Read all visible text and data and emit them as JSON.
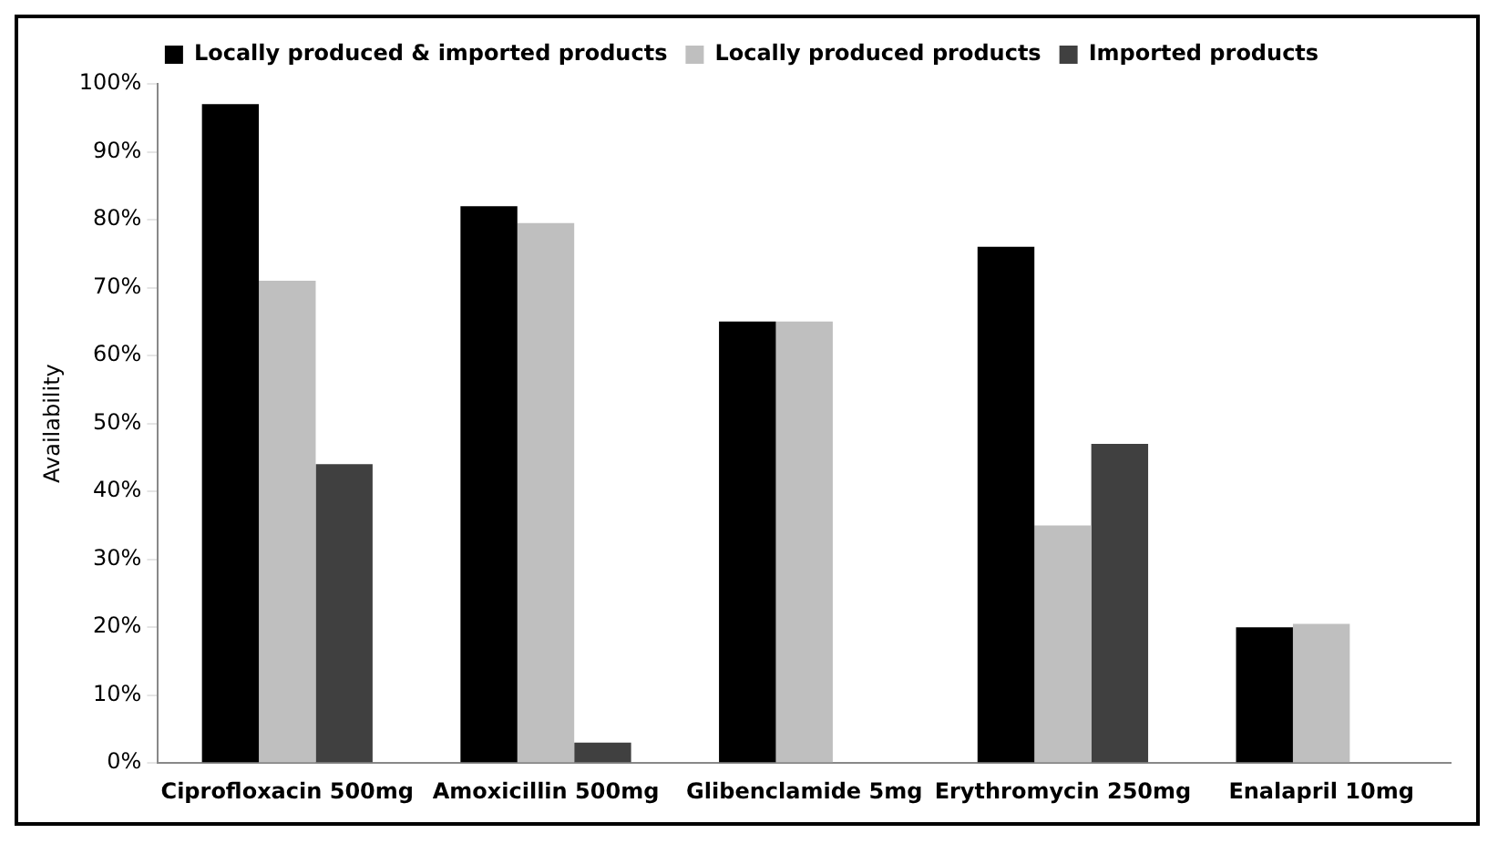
{
  "chart_data": {
    "type": "bar",
    "ylabel": "Availability",
    "categories": [
      "Ciprofloxacin 500mg",
      "Amoxicillin 500mg",
      "Glibenclamide 5mg",
      "Erythromycin 250mg",
      "Enalapril 10mg"
    ],
    "series": [
      {
        "name": "Locally produced & imported products",
        "color": "#000000",
        "values": [
          97,
          82,
          65,
          76,
          20
        ]
      },
      {
        "name": "Locally produced products",
        "color": "#bfbfbf",
        "values": [
          71,
          79.5,
          65,
          35,
          20.5
        ]
      },
      {
        "name": "Imported products",
        "color": "#404040",
        "values": [
          44,
          3,
          null,
          47,
          null
        ]
      }
    ],
    "ylim": [
      0,
      100
    ],
    "yticks": [
      {
        "value": 0,
        "label": "0%"
      },
      {
        "value": 10,
        "label": "10%"
      },
      {
        "value": 20,
        "label": "20%"
      },
      {
        "value": 30,
        "label": "30%"
      },
      {
        "value": 40,
        "label": "40%"
      },
      {
        "value": 50,
        "label": "50%"
      },
      {
        "value": 60,
        "label": "60%"
      },
      {
        "value": 70,
        "label": "70%"
      },
      {
        "value": 80,
        "label": "80%"
      },
      {
        "value": 90,
        "label": "90%"
      },
      {
        "value": 100,
        "label": "100%"
      }
    ],
    "grid": false,
    "legend": "top"
  }
}
